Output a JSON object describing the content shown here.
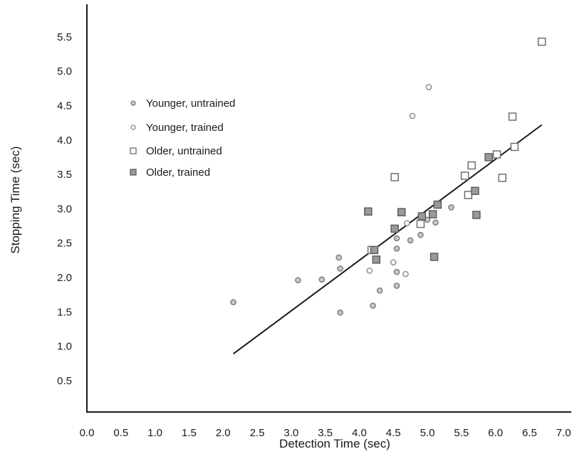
{
  "chart_data": {
    "type": "scatter",
    "title": "",
    "xlabel": "Detection Time (sec)",
    "ylabel": "Stopping Time (sec)",
    "xlim": [
      0.0,
      7.0
    ],
    "ylim": [
      0.0,
      5.75
    ],
    "xticks": [
      "0.0",
      "0.5",
      "1.0",
      "1.5",
      "2.0",
      "2.5",
      "3.0",
      "3.5",
      "4.0",
      "4.5",
      "5.0",
      "5.5",
      "6.0",
      "6.5",
      "7.0"
    ],
    "yticks": [
      "0.5",
      "1.0",
      "1.5",
      "2.0",
      "2.5",
      "3.0",
      "3.5",
      "4.0",
      "4.5",
      "5.0",
      "5.5"
    ],
    "grid": false,
    "legend_position": "upper-left",
    "series": [
      {
        "name": "Younger, untrained",
        "marker": "circle",
        "fill": "#c8c8c8",
        "stroke": "#7a7a7a",
        "points": [
          [
            2.15,
            1.64
          ],
          [
            3.1,
            1.96
          ],
          [
            3.45,
            1.97
          ],
          [
            3.7,
            2.29
          ],
          [
            3.72,
            2.13
          ],
          [
            3.72,
            1.49
          ],
          [
            4.2,
            1.59
          ],
          [
            4.3,
            1.81
          ],
          [
            4.55,
            2.57
          ],
          [
            4.55,
            2.42
          ],
          [
            4.55,
            2.08
          ],
          [
            4.55,
            1.88
          ],
          [
            4.75,
            2.54
          ],
          [
            4.9,
            2.62
          ],
          [
            5.0,
            2.84
          ],
          [
            5.12,
            2.8
          ],
          [
            5.35,
            3.02
          ]
        ]
      },
      {
        "name": "Younger, trained",
        "marker": "circle",
        "fill": "#ffffff",
        "stroke": "#8a8a8a",
        "points": [
          [
            4.15,
            2.1
          ],
          [
            4.5,
            2.22
          ],
          [
            4.68,
            2.05
          ],
          [
            4.7,
            2.79
          ],
          [
            4.78,
            4.35
          ],
          [
            5.02,
            4.77
          ]
        ]
      },
      {
        "name": "Older, untrained",
        "marker": "square",
        "fill": "#ffffff",
        "stroke": "#6e6e6e",
        "points": [
          [
            4.18,
            2.4
          ],
          [
            4.52,
            3.46
          ],
          [
            4.62,
            2.95
          ],
          [
            4.9,
            2.78
          ],
          [
            5.55,
            3.48
          ],
          [
            5.6,
            3.2
          ],
          [
            5.65,
            3.63
          ],
          [
            6.02,
            3.79
          ],
          [
            6.1,
            3.45
          ],
          [
            6.25,
            4.34
          ],
          [
            6.28,
            3.9
          ],
          [
            6.68,
            5.43
          ]
        ]
      },
      {
        "name": "Older, trained",
        "marker": "square",
        "fill": "#9a9a9a",
        "stroke": "#5f5f5f",
        "points": [
          [
            4.13,
            2.96
          ],
          [
            4.22,
            2.4
          ],
          [
            4.25,
            2.26
          ],
          [
            4.52,
            2.71
          ],
          [
            4.62,
            2.95
          ],
          [
            4.92,
            2.89
          ],
          [
            5.08,
            2.92
          ],
          [
            5.1,
            2.3
          ],
          [
            5.15,
            3.06
          ],
          [
            5.7,
            3.26
          ],
          [
            5.72,
            2.91
          ],
          [
            5.9,
            3.75
          ]
        ]
      }
    ],
    "trend_line": {
      "x": [
        2.15,
        6.68
      ],
      "y": [
        0.89,
        4.22
      ]
    }
  }
}
